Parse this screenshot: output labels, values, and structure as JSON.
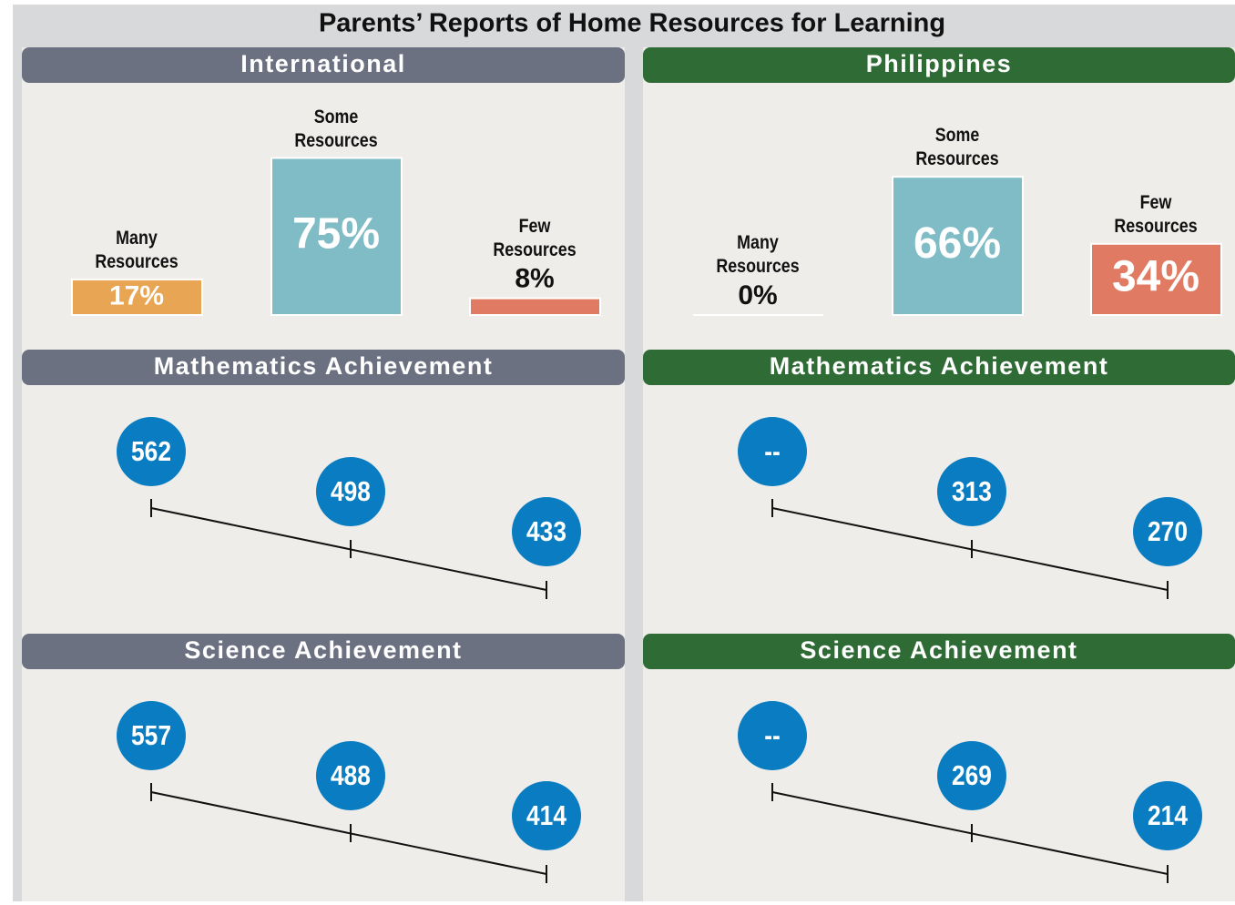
{
  "title": "Parents’ Reports of Home Resources for Learning",
  "chart_data": [
    {
      "type": "bar",
      "title": "International",
      "header_color": "#6b7180",
      "categories": [
        "Many Resources",
        "Some Resources",
        "Few Resources"
      ],
      "values": [
        17,
        75,
        8
      ],
      "value_labels": [
        "17%",
        "75%",
        "8%"
      ],
      "colors": [
        "#e8a654",
        "#7fbcc6",
        "#e07a62"
      ]
    },
    {
      "type": "bar",
      "title": "Philippines",
      "header_color": "#2e6b35",
      "categories": [
        "Many Resources",
        "Some Resources",
        "Few Resources"
      ],
      "values": [
        0,
        66,
        34
      ],
      "value_labels": [
        "0%",
        "66%",
        "34%"
      ],
      "colors": [
        "#e8a654",
        "#7fbcc6",
        "#e07a62"
      ]
    },
    {
      "type": "dots",
      "title": "Mathematics Achievement",
      "header_color": "#6b7180",
      "values": [
        562,
        498,
        433
      ],
      "color": "#0a7dc2"
    },
    {
      "type": "dots",
      "title": "Mathematics Achievement",
      "header_color": "#2e6b35",
      "values": [
        null,
        313,
        270
      ],
      "value_labels": [
        "--",
        "313",
        "270"
      ],
      "color": "#0a7dc2"
    },
    {
      "type": "dots",
      "title": "Science Achievement",
      "header_color": "#6b7180",
      "values": [
        557,
        488,
        414
      ],
      "color": "#0a7dc2"
    },
    {
      "type": "dots",
      "title": "Science Achievement",
      "header_color": "#2e6b35",
      "values": [
        null,
        269,
        214
      ],
      "value_labels": [
        "--",
        "269",
        "214"
      ],
      "color": "#0a7dc2"
    }
  ]
}
